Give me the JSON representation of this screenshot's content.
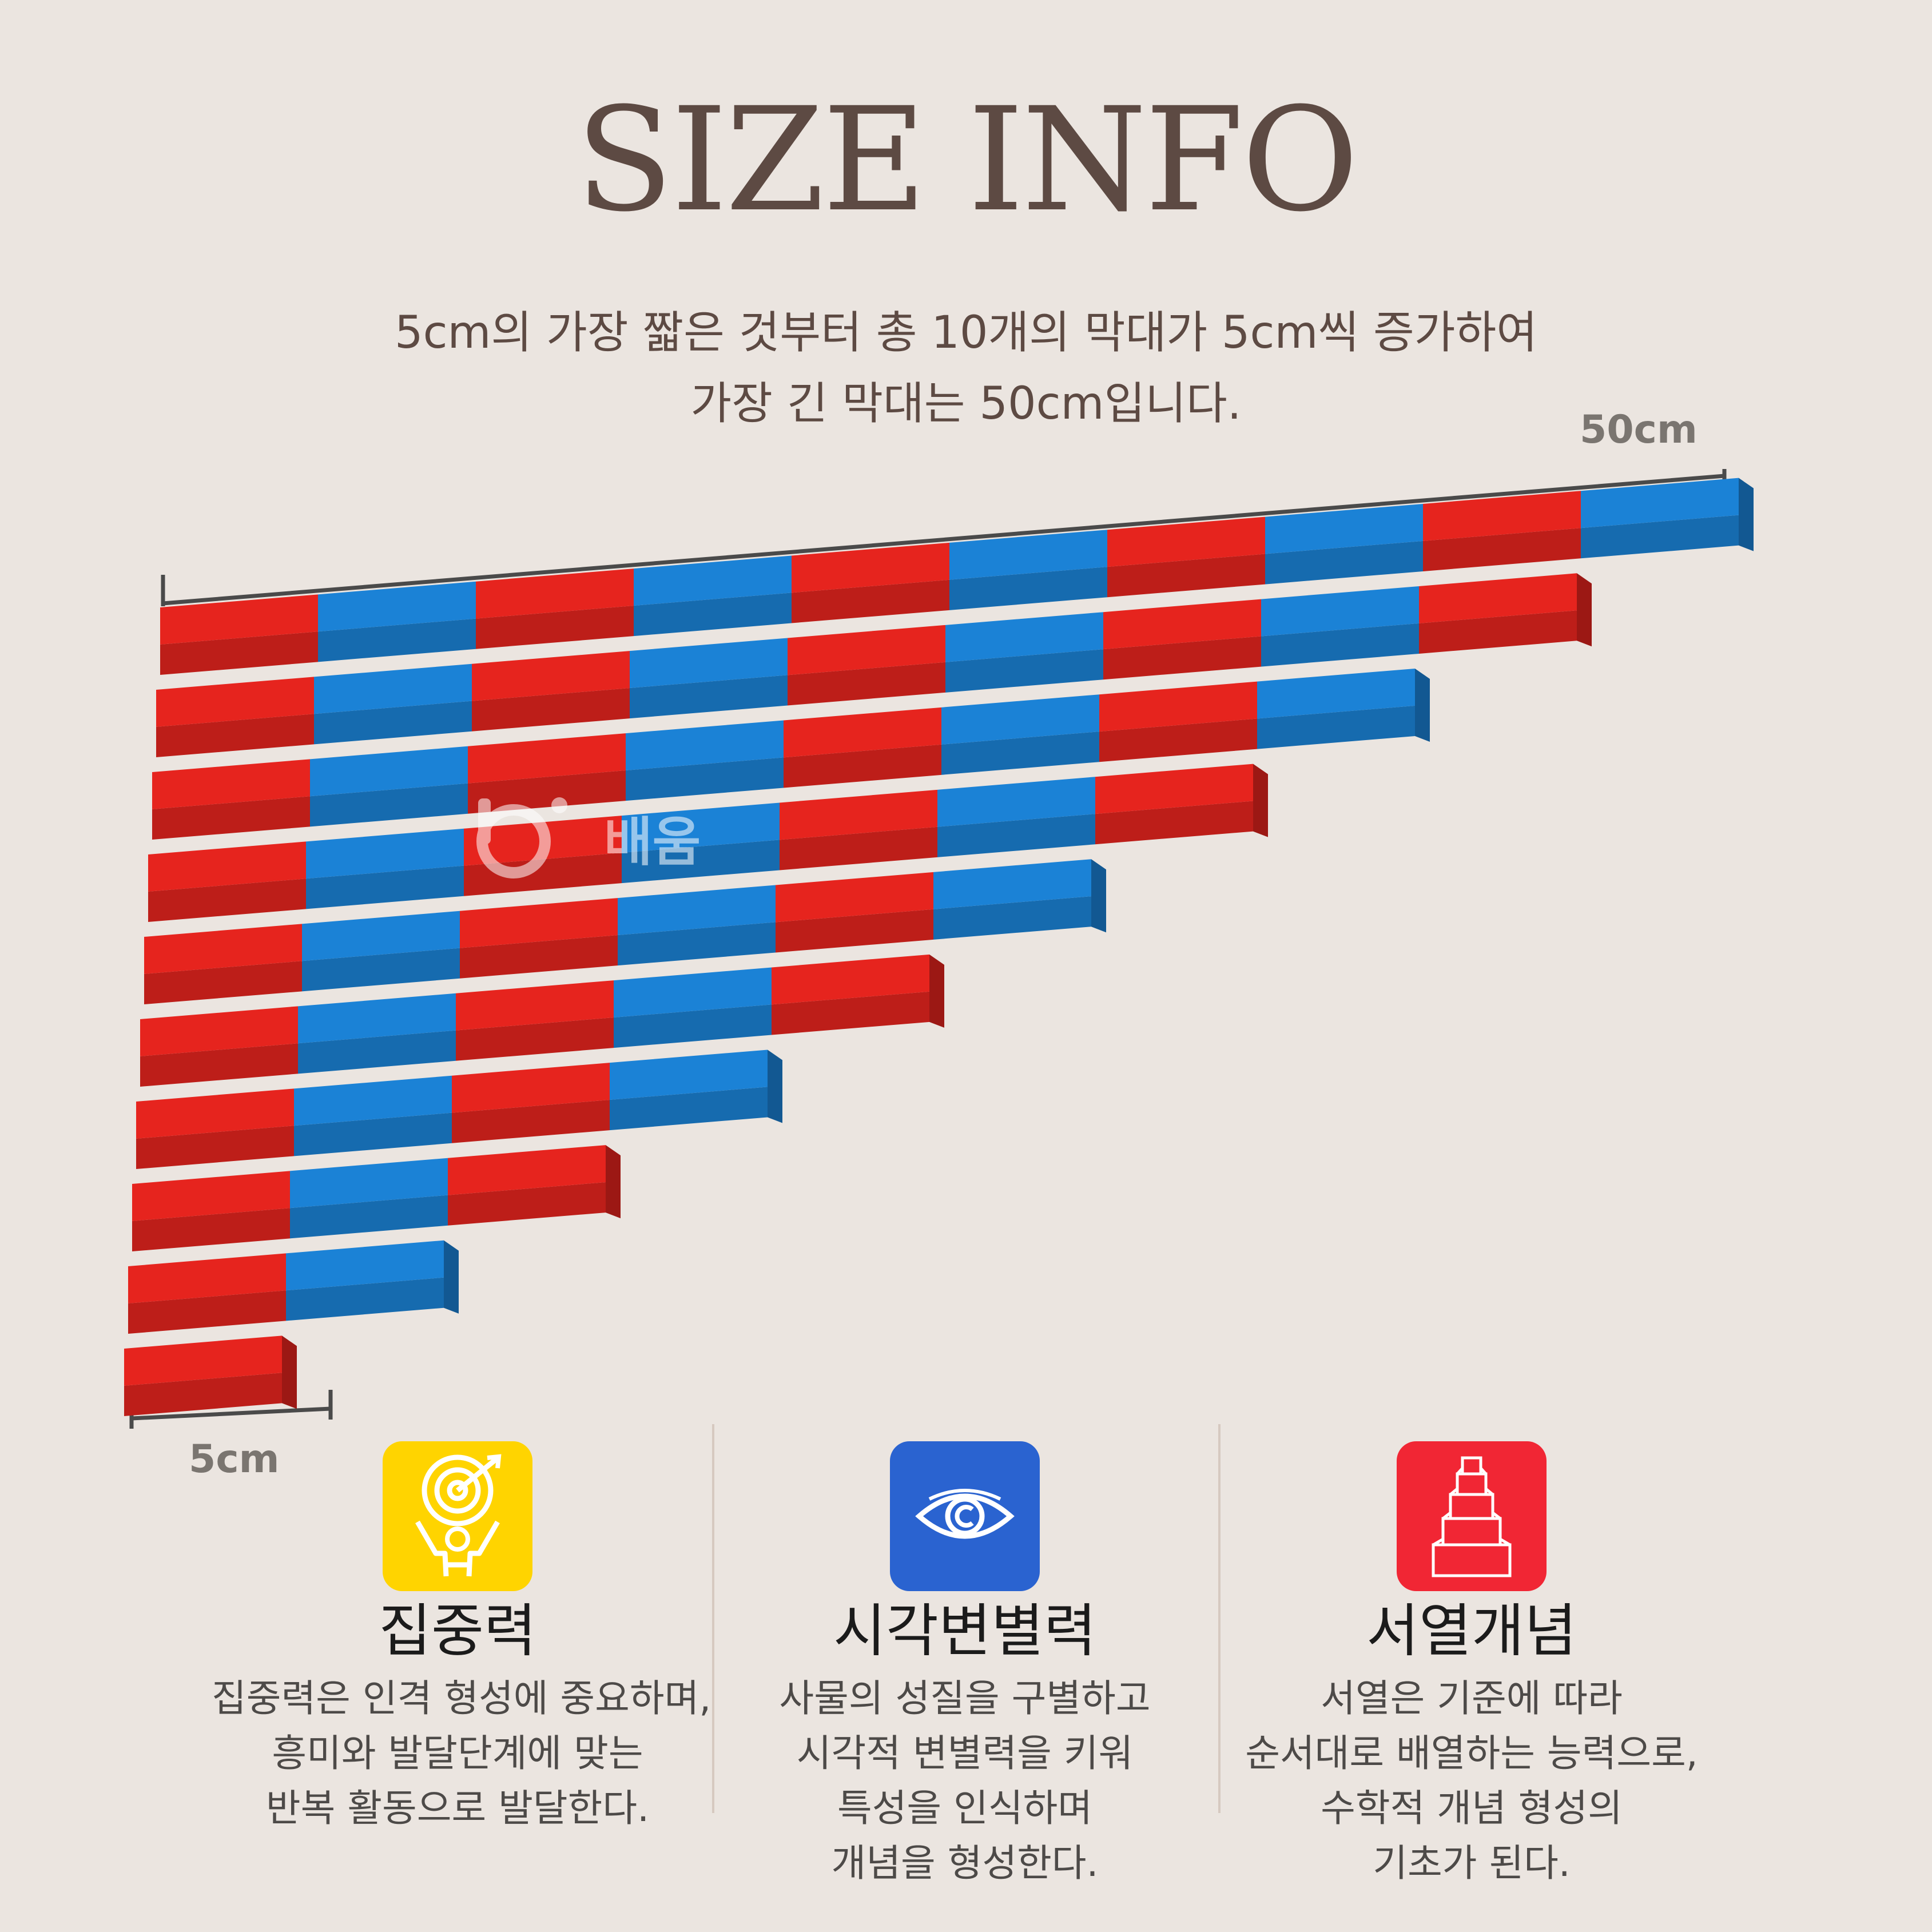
{
  "title": "SIZE INFO",
  "description": {
    "line1": "5cm의 가장 짧은 것부터 총 10개의 막대가 5cm씩 증가하여",
    "line2": "가장 긴 막대는 50cm입니다."
  },
  "dimensions": {
    "long_label": "50cm",
    "short_label": "5cm"
  },
  "rods": {
    "count": 10,
    "segment_length_cm": 5,
    "colors": {
      "red": "#e6241e",
      "blue": "#1b82d6"
    }
  },
  "watermark": {
    "logo_text": "배움"
  },
  "features": [
    {
      "title": "집중력",
      "icon": "target-person-icon",
      "icon_color": "#ffd400",
      "lines": [
        "집중력은 인격 형성에 중요하며,",
        "흥미와 발달단계에 맞는",
        "반복 활동으로 발달한다."
      ]
    },
    {
      "title": "시각변별력",
      "icon": "eye-icon",
      "icon_color": "#2a63d0",
      "lines": [
        "사물의 성질을 구별하고",
        "시각적 변별력을 키워",
        "특성을 인식하며",
        "개념을 형성한다."
      ]
    },
    {
      "title": "서열개념",
      "icon": "stacked-blocks-icon",
      "icon_color": "#f12634",
      "lines": [
        "서열은 기준에 따라",
        "순서대로 배열하는 능력으로,",
        "수학적 개념 형성의",
        "기초가 된다."
      ]
    }
  ]
}
